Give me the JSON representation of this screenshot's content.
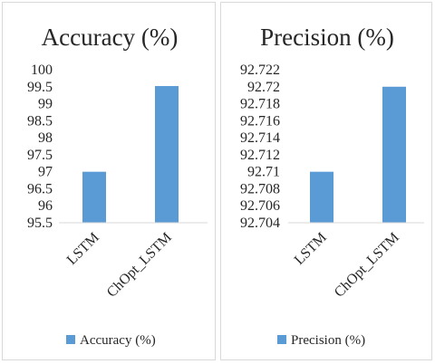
{
  "chart_data": [
    {
      "type": "bar",
      "title": "Accuracy (%)",
      "categories": [
        "LSTM",
        "ChOpt_LSTM"
      ],
      "series": [
        {
          "name": "Accuracy (%)",
          "values": [
            97,
            99.52
          ]
        }
      ],
      "ylim": [
        95.5,
        100
      ],
      "yticks": [
        "95.5",
        "96",
        "96.5",
        "97",
        "97.5",
        "98",
        "98.5",
        "99",
        "99.5",
        "100"
      ],
      "yticks_values": [
        95.5,
        96,
        96.5,
        97,
        97.5,
        98,
        98.5,
        99,
        99.5,
        100
      ],
      "bar_color": "#5b9bd5",
      "grid": false,
      "legend_position": "bottom"
    },
    {
      "type": "bar",
      "title": "Precision (%)",
      "categories": [
        "LSTM",
        "ChOpt_LSTM"
      ],
      "series": [
        {
          "name": "Precision (%)",
          "values": [
            92.71,
            92.72
          ]
        }
      ],
      "ylim": [
        92.704,
        92.722
      ],
      "yticks": [
        "92.704",
        "92.706",
        "92.708",
        "92.71",
        "92.712",
        "92.714",
        "92.716",
        "92.718",
        "92.72",
        "92.722"
      ],
      "yticks_values": [
        92.704,
        92.706,
        92.708,
        92.71,
        92.712,
        92.714,
        92.716,
        92.718,
        92.72,
        92.722
      ],
      "bar_color": "#5b9bd5",
      "grid": false,
      "legend_position": "bottom"
    }
  ]
}
